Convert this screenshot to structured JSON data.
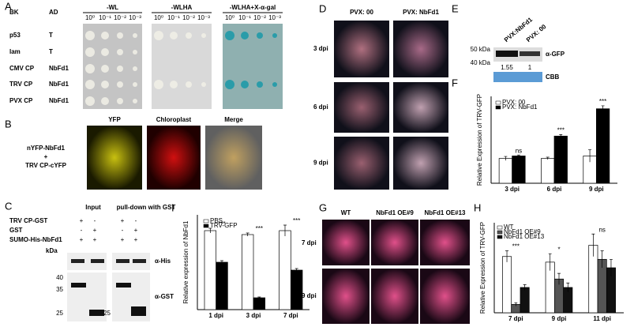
{
  "panel_a": {
    "label": "A",
    "bk": "BK",
    "ad": "AD",
    "media": [
      "-WL",
      "-WLHA",
      "-WLHA+X-α-gal"
    ],
    "dilutions": [
      "10⁰",
      "10⁻¹",
      "10⁻²",
      "10⁻³"
    ],
    "rows": [
      [
        "p53",
        "T"
      ],
      [
        "lam",
        "T"
      ],
      [
        "CMV CP",
        "NbFd1"
      ],
      [
        "TRV CP",
        "NbFd1"
      ],
      [
        "PVX CP",
        "NbFd1"
      ]
    ]
  },
  "panel_b": {
    "label": "B",
    "columns": [
      "YFP",
      "Chloroplast",
      "Merge"
    ],
    "construct": [
      "nYFP-NbFd1",
      "+",
      "TRV CP-cYFP"
    ]
  },
  "panel_c": {
    "label": "C",
    "headers": [
      "Input",
      "pull-down with GST"
    ],
    "rows": [
      {
        "name": "TRV CP-GST",
        "signs": [
          "+",
          "-",
          "+",
          "-"
        ]
      },
      {
        "name": "GST",
        "signs": [
          "-",
          "+",
          "-",
          "+"
        ]
      },
      {
        "name": "SUMO-His-NbFd1",
        "signs": [
          "+",
          "+",
          "+",
          "+"
        ]
      }
    ],
    "kda": "kDa",
    "markers_left": [
      "40",
      "35",
      "25"
    ],
    "markers_right": [
      "25"
    ],
    "antibodies": [
      "α-His",
      "α-GST"
    ]
  },
  "panel_d": {
    "label": "D",
    "columns": [
      "PVX: 00",
      "PVX: NbFd1"
    ],
    "rows": [
      "3 dpi",
      "6 dpi",
      "9 dpi"
    ]
  },
  "panel_e": {
    "label": "E",
    "lanes": [
      "PVX:NbFd1",
      "PVX: 00"
    ],
    "markers": [
      "50 kDa",
      "40 kDa"
    ],
    "antibody": "α-GFP",
    "ratios": [
      1.55,
      1
    ],
    "loading": "CBB"
  },
  "panel_f": {
    "label": "F",
    "chart": {
      "type": "bar",
      "y_label": "Relative Expression of TRV-GFP",
      "categories": [
        "3 dpi",
        "6 dpi",
        "9 dpi"
      ],
      "series": [
        {
          "name": "PVX: 00",
          "color": "#ffffff",
          "values": [
            1.0,
            1.0,
            1.1
          ],
          "errors": [
            0.08,
            0.05,
            0.25
          ]
        },
        {
          "name": "PVX: NbFd1",
          "color": "#000000",
          "values": [
            1.1,
            1.9,
            3.0
          ],
          "errors": [
            0.04,
            0.06,
            0.12
          ]
        }
      ],
      "annotations": [
        "ns",
        "***",
        "***"
      ],
      "ylim": [
        0,
        3.5
      ]
    }
  },
  "panel_g": {
    "label": "G",
    "columns": [
      "WT",
      "NbFd1 OE#9",
      "NbFd1 OE#13"
    ],
    "rows": [
      "7 dpi",
      "9 dpi"
    ]
  },
  "panel_h": {
    "label": "H",
    "chart": {
      "type": "bar",
      "y_label": "Relative Expression of TRV-GFP",
      "categories": [
        "7 dpi",
        "9 dpi",
        "11 dpi"
      ],
      "series": [
        {
          "name": "WT",
          "color": "#ffffff",
          "values": [
            1.0,
            0.9,
            1.2
          ],
          "errors": [
            0.1,
            0.15,
            0.2
          ]
        },
        {
          "name": "NbFd1 OE#9",
          "color": "#555555",
          "values": [
            0.15,
            0.6,
            0.95
          ],
          "errors": [
            0.03,
            0.1,
            0.15
          ]
        },
        {
          "name": "NbFd1 OE#13",
          "color": "#111111",
          "values": [
            0.45,
            0.45,
            0.8
          ],
          "errors": [
            0.05,
            0.08,
            0.15
          ]
        }
      ],
      "annotations": [
        "***",
        "*",
        "ns"
      ],
      "ylim": [
        0,
        1.6
      ]
    }
  },
  "panel_i": {
    "label": "I",
    "chart": {
      "type": "bar",
      "y_label": "Relative expression of NbFd1",
      "categories": [
        "1 dpi",
        "3 dpi",
        "7 dpi"
      ],
      "series": [
        {
          "name": "PBS",
          "color": "#ffffff",
          "values": [
            1.0,
            0.95,
            1.0
          ],
          "errors": [
            0.03,
            0.02,
            0.07
          ]
        },
        {
          "name": "TRV-GFP",
          "color": "#000000",
          "values": [
            0.6,
            0.15,
            0.5
          ],
          "errors": [
            0.02,
            0.01,
            0.02
          ]
        }
      ],
      "annotations": [
        "***",
        "***",
        "***"
      ],
      "ylim": [
        0,
        1.2
      ]
    }
  }
}
